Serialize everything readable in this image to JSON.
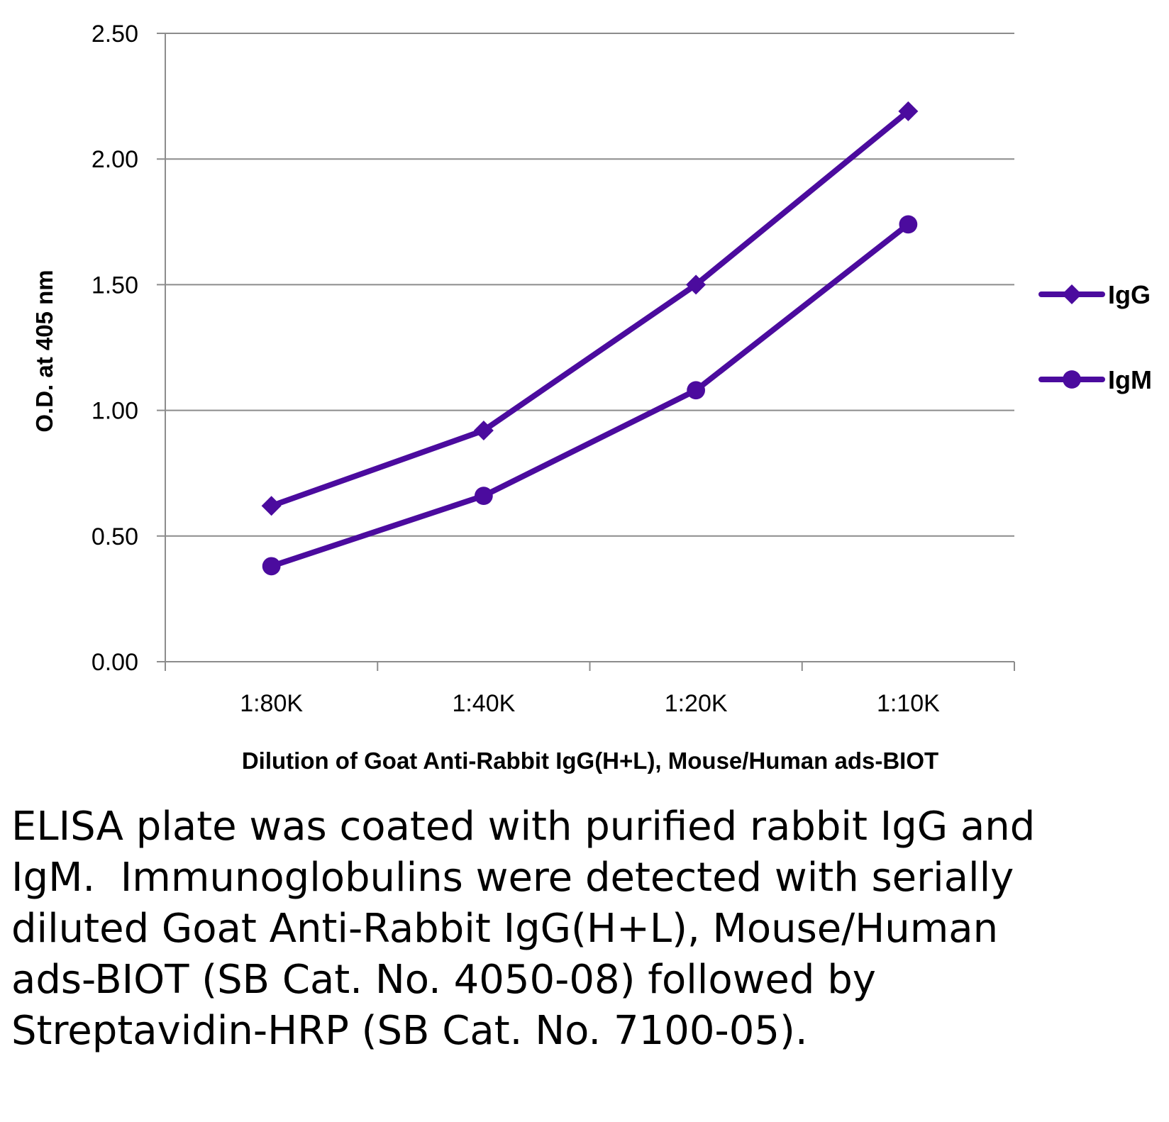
{
  "chart_data": {
    "type": "line",
    "categories": [
      "1:80K",
      "1:40K",
      "1:20K",
      "1:10K"
    ],
    "series": [
      {
        "name": "IgG",
        "marker": "diamond",
        "values": [
          0.62,
          0.92,
          1.5,
          2.19
        ]
      },
      {
        "name": "IgM",
        "marker": "circle",
        "values": [
          0.38,
          0.66,
          1.08,
          1.74
        ]
      }
    ],
    "xlabel": "Dilution of Goat Anti-Rabbit IgG(H+L), Mouse/Human ads-BIOT",
    "ylabel": "O.D. at 405 nm",
    "ylim": [
      0,
      2.5
    ],
    "yticks": [
      "0.00",
      "0.50",
      "1.00",
      "1.50",
      "2.00",
      "2.50"
    ],
    "grid": true,
    "legend_position": "right",
    "color": "#4B0B9E"
  },
  "caption": "ELISA plate was coated with purified rabbit IgG and IgM.  Immunoglobulins were detected with serially diluted Goat Anti-Rabbit IgG(H+L), Mouse/Human ads-BIOT (SB Cat. No. 4050-08) followed by Streptavidin-HRP (SB Cat. No. 7100-05)."
}
